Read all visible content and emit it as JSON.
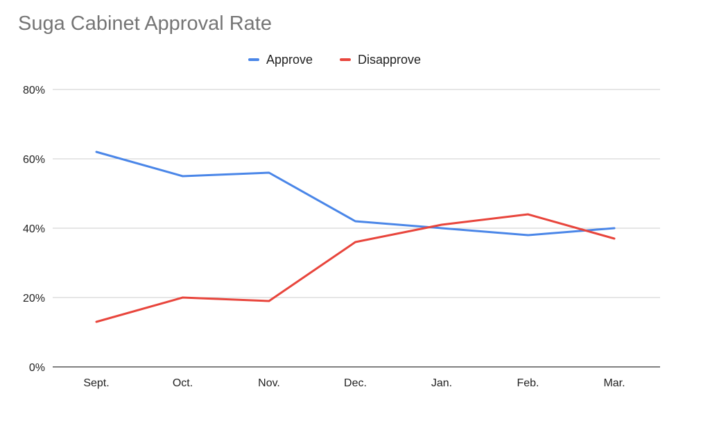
{
  "chart_data": {
    "type": "line",
    "title": "Suga Cabinet Approval Rate",
    "categories": [
      "Sept.",
      "Oct.",
      "Nov.",
      "Dec.",
      "Jan.",
      "Feb.",
      "Mar."
    ],
    "series": [
      {
        "name": "Approve",
        "color": "#4a86e8",
        "values": [
          62,
          55,
          56,
          42,
          40,
          38,
          40
        ]
      },
      {
        "name": "Disapprove",
        "color": "#e8453c",
        "values": [
          13,
          20,
          19,
          36,
          41,
          44,
          37
        ]
      }
    ],
    "ylim": [
      0,
      80
    ],
    "yticks": [
      0,
      20,
      40,
      60,
      80
    ],
    "ytick_labels": [
      "0%",
      "20%",
      "40%",
      "60%",
      "80%"
    ],
    "xlabel": "",
    "ylabel": "",
    "grid": true,
    "legend_position": "top-center"
  }
}
